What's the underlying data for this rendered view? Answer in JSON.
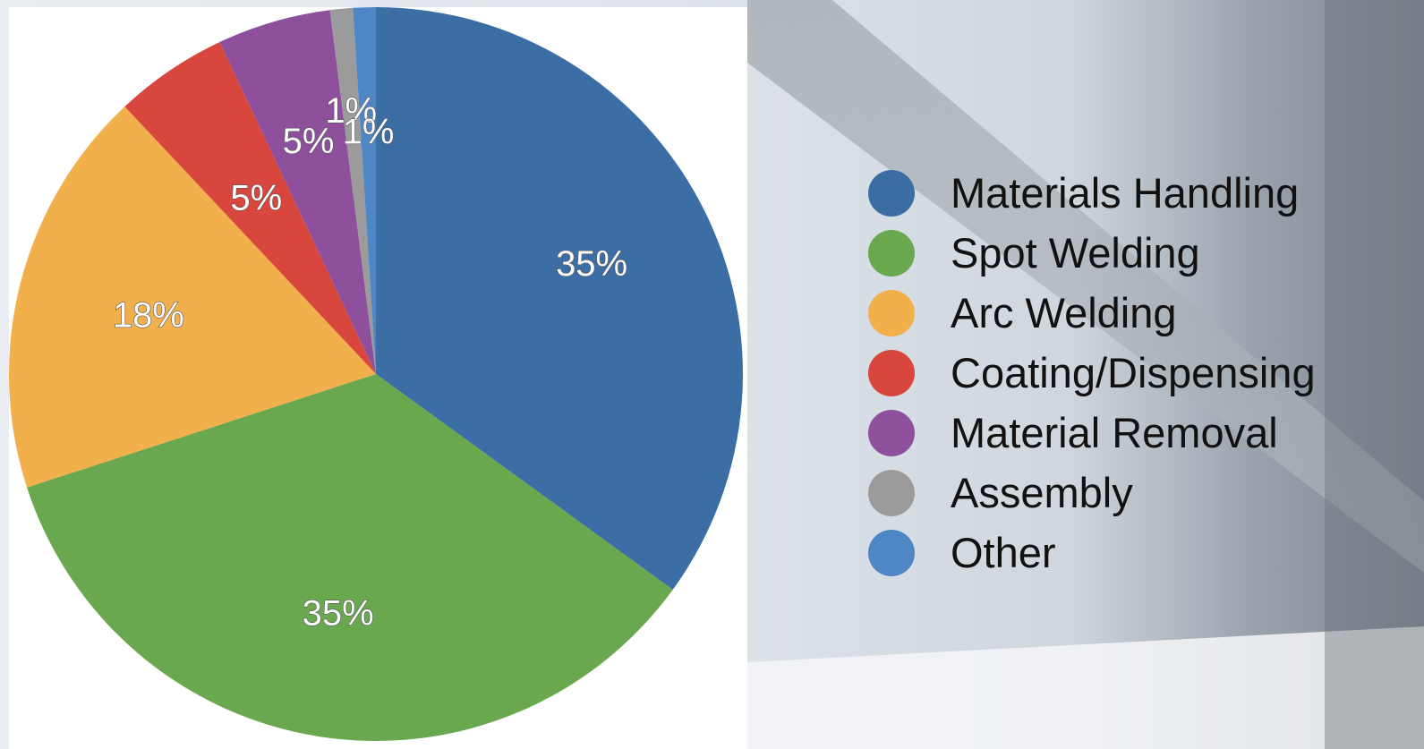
{
  "chart_data": {
    "type": "pie",
    "title": "",
    "categories": [
      "Materials Handling",
      "Spot Welding",
      "Arc Welding",
      "Coating/Dispensing",
      "Material Removal",
      "Assembly",
      "Other"
    ],
    "values": [
      35,
      35,
      18,
      5,
      5,
      1,
      1
    ],
    "data_labels": [
      "35%",
      "35%",
      "18%",
      "5%",
      "5%",
      "1%",
      "1%"
    ],
    "colors": [
      "#3a6ea5",
      "#6aa84f",
      "#f1b04c",
      "#d9463d",
      "#8e4f9c",
      "#9b9b9b",
      "#4f86c6"
    ],
    "legend_position": "right",
    "start_angle_deg": 0,
    "direction": "clockwise"
  },
  "legend": {
    "items": [
      {
        "label": "Materials Handling",
        "color": "#3a6ea5"
      },
      {
        "label": "Spot Welding",
        "color": "#6aa84f"
      },
      {
        "label": "Arc Welding",
        "color": "#f1b04c"
      },
      {
        "label": "Coating/Dispensing",
        "color": "#d9463d"
      },
      {
        "label": "Material Removal",
        "color": "#8e4f9c"
      },
      {
        "label": "Assembly",
        "color": "#9b9b9b"
      },
      {
        "label": "Other",
        "color": "#4f86c6"
      }
    ]
  }
}
